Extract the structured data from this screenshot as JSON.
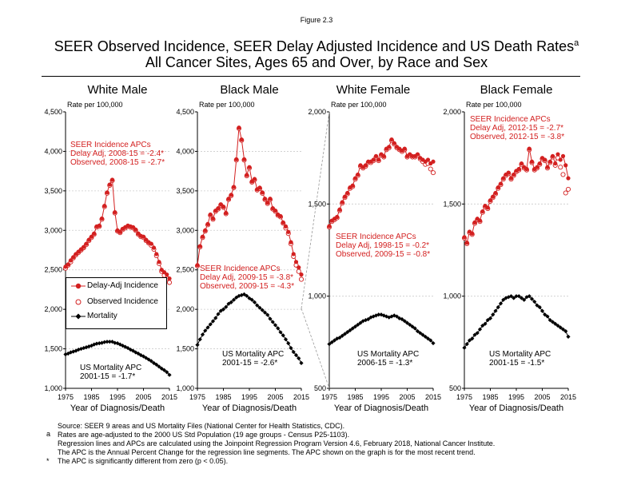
{
  "figure_label": "Figure 2.3",
  "title_line1": "SEER Observed Incidence, SEER Delay Adjusted Incidence and US Death Rates",
  "title_superscript": "a",
  "title_line2": "All Cancer Sites, Ages 65 and Over, by Race and Sex",
  "colors": {
    "incidence": "#d32020",
    "mortality": "#000000",
    "apc_text": "#d32020",
    "grid": "#cccccc"
  },
  "legend": {
    "delay_adj": "Delay-Adj Incidence",
    "observed": "Observed Incidence",
    "mortality": "Mortality"
  },
  "footnotes": {
    "source": "Source: SEER 9 areas and US Mortality Files (National Center for Health Statistics, CDC).",
    "a_marker": "a",
    "a_text": "Rates are age-adjusted to the 2000 US Std Population (19 age groups - Census P25-1103).",
    "line3": "Regression lines and APCs are calculated using the Joinpoint Regression Program Version 4.6, February 2018, National Cancer Institute.",
    "line4": "The APC is the Annual Percent Change for the regression line segments. The APC shown on the graph is for the most recent trend.",
    "star_marker": "*",
    "star_text": "The APC is significantly different from zero (p < 0.05)."
  },
  "chart_data": [
    {
      "type": "line",
      "title": "White Male",
      "ylabel": "Rate per 100,000",
      "xlabel": "Year of Diagnosis/Death",
      "x_ticks": [
        1975,
        1985,
        1995,
        2005,
        2015
      ],
      "y_ticks": [
        1000,
        1500,
        2000,
        2500,
        3000,
        3500,
        4000,
        4500
      ],
      "y_tick_labels": [
        "1,000",
        "1,500",
        "2,000",
        "2,500",
        "3,000",
        "3,500",
        "4,000",
        "4,500"
      ],
      "ylim": [
        1000,
        4500
      ],
      "log_scale": false,
      "x": [
        1975,
        1976,
        1977,
        1978,
        1979,
        1980,
        1981,
        1982,
        1983,
        1984,
        1985,
        1986,
        1987,
        1988,
        1989,
        1990,
        1991,
        1992,
        1993,
        1994,
        1995,
        1996,
        1997,
        1998,
        1999,
        2000,
        2001,
        2002,
        2003,
        2004,
        2005,
        2006,
        2007,
        2008,
        2009,
        2010,
        2011,
        2012,
        2013,
        2014,
        2015
      ],
      "series": [
        {
          "name": "Delay-Adj Incidence",
          "values": [
            2540,
            2570,
            2620,
            2660,
            2700,
            2730,
            2760,
            2790,
            2830,
            2880,
            2920,
            2960,
            3050,
            3060,
            3150,
            3310,
            3480,
            3580,
            3640,
            3230,
            3000,
            2980,
            3020,
            3040,
            3060,
            3050,
            3040,
            3010,
            2960,
            2930,
            2920,
            2880,
            2850,
            2830,
            2780,
            2700,
            2600,
            2500,
            2470,
            2440,
            2390
          ]
        },
        {
          "name": "Observed Incidence",
          "values": [
            2520,
            2560,
            2600,
            2650,
            2690,
            2720,
            2750,
            2780,
            2820,
            2870,
            2910,
            2950,
            3040,
            3050,
            3140,
            3300,
            3470,
            3570,
            3630,
            3220,
            2990,
            2970,
            3010,
            3030,
            3050,
            3040,
            3030,
            3000,
            2950,
            2920,
            2910,
            2870,
            2840,
            2810,
            2760,
            2680,
            2580,
            2480,
            2430,
            2390,
            2340
          ]
        },
        {
          "name": "Mortality",
          "values": [
            1430,
            1440,
            1455,
            1465,
            1475,
            1490,
            1500,
            1510,
            1520,
            1530,
            1540,
            1555,
            1565,
            1570,
            1575,
            1585,
            1590,
            1590,
            1590,
            1575,
            1570,
            1555,
            1540,
            1525,
            1510,
            1490,
            1475,
            1455,
            1440,
            1420,
            1405,
            1385,
            1365,
            1345,
            1320,
            1300,
            1275,
            1250,
            1230,
            1205,
            1170
          ]
        }
      ],
      "apc_incidence": [
        "SEER Incidence APCs",
        "Delay Adj, 2008-15 = -2.4*",
        "Observed, 2008-15 = -2.7*"
      ],
      "apc_mortality": [
        "US Mortality APC",
        "2001-15 = -1.7*"
      ]
    },
    {
      "type": "line",
      "title": "Black Male",
      "ylabel": "Rate per 100,000",
      "xlabel": "Year of Diagnosis/Death",
      "x_ticks": [
        1975,
        1985,
        1995,
        2005,
        2015
      ],
      "y_ticks": [
        1000,
        1500,
        2000,
        2500,
        3000,
        3500,
        4000,
        4500
      ],
      "y_tick_labels": [
        "1,000",
        "1,500",
        "2,000",
        "2,500",
        "3,000",
        "3,500",
        "4,000",
        "4,500"
      ],
      "ylim": [
        1000,
        4500
      ],
      "log_scale": false,
      "x": [
        1975,
        1976,
        1977,
        1978,
        1979,
        1980,
        1981,
        1982,
        1983,
        1984,
        1985,
        1986,
        1987,
        1988,
        1989,
        1990,
        1991,
        1992,
        1993,
        1994,
        1995,
        1996,
        1997,
        1998,
        1999,
        2000,
        2001,
        2002,
        2003,
        2004,
        2005,
        2006,
        2007,
        2008,
        2009,
        2010,
        2011,
        2012,
        2013,
        2014,
        2015
      ],
      "series": [
        {
          "name": "Delay-Adj Incidence",
          "values": [
            2560,
            2800,
            2920,
            3000,
            3080,
            3200,
            3150,
            3250,
            3280,
            3330,
            3300,
            3220,
            3400,
            3450,
            3550,
            3900,
            4300,
            4150,
            3900,
            3700,
            3800,
            3620,
            3650,
            3520,
            3540,
            3480,
            3400,
            3350,
            3400,
            3280,
            3250,
            3200,
            3180,
            3100,
            3050,
            2980,
            2850,
            2700,
            2600,
            2530,
            2440
          ]
        },
        {
          "name": "Observed Incidence",
          "values": [
            2550,
            2790,
            2910,
            2990,
            3070,
            3190,
            3140,
            3240,
            3270,
            3320,
            3290,
            3210,
            3390,
            3440,
            3540,
            3890,
            4290,
            4140,
            3890,
            3690,
            3790,
            3610,
            3640,
            3510,
            3530,
            3470,
            3390,
            3340,
            3390,
            3270,
            3240,
            3190,
            3170,
            3090,
            3030,
            2960,
            2830,
            2670,
            2560,
            2480,
            2380
          ]
        },
        {
          "name": "Mortality",
          "values": [
            1550,
            1620,
            1680,
            1730,
            1770,
            1810,
            1850,
            1890,
            1940,
            1980,
            2000,
            2030,
            2070,
            2090,
            2120,
            2150,
            2170,
            2180,
            2190,
            2170,
            2140,
            2120,
            2090,
            2050,
            2020,
            1990,
            1960,
            1930,
            1880,
            1840,
            1800,
            1760,
            1710,
            1670,
            1620,
            1570,
            1510,
            1460,
            1420,
            1380,
            1320
          ]
        }
      ],
      "apc_incidence": [
        "SEER Incidence APCs",
        "Delay Adj, 2009-15 = -3.8*",
        "Observed, 2009-15 = -4.3*"
      ],
      "apc_mortality": [
        "US Mortality APC",
        "2001-15 = -2.6*"
      ]
    },
    {
      "type": "line",
      "title": "White Female",
      "ylabel": "Rate per 100,000",
      "xlabel": "Year of Diagnosis/Death",
      "x_ticks": [
        1975,
        1985,
        1995,
        2005,
        2015
      ],
      "y_ticks": [
        500,
        1000,
        1500,
        2000
      ],
      "y_tick_labels": [
        "500",
        "1,000",
        "1,500",
        "2,000"
      ],
      "ylim": [
        500,
        2000
      ],
      "log_scale": false,
      "x": [
        1975,
        1976,
        1977,
        1978,
        1979,
        1980,
        1981,
        1982,
        1983,
        1984,
        1985,
        1986,
        1987,
        1988,
        1989,
        1990,
        1991,
        1992,
        1993,
        1994,
        1995,
        1996,
        1997,
        1998,
        1999,
        2000,
        2001,
        2002,
        2003,
        2004,
        2005,
        2006,
        2007,
        2008,
        2009,
        2010,
        2011,
        2012,
        2013,
        2014,
        2015
      ],
      "series": [
        {
          "name": "Delay-Adj Incidence",
          "values": [
            1380,
            1410,
            1420,
            1430,
            1470,
            1510,
            1540,
            1560,
            1590,
            1600,
            1640,
            1660,
            1710,
            1700,
            1710,
            1730,
            1730,
            1740,
            1760,
            1740,
            1770,
            1760,
            1800,
            1810,
            1850,
            1830,
            1810,
            1800,
            1790,
            1800,
            1760,
            1770,
            1760,
            1760,
            1770,
            1750,
            1740,
            1730,
            1740,
            1720,
            1730
          ]
        },
        {
          "name": "Observed Incidence",
          "values": [
            1375,
            1405,
            1415,
            1425,
            1465,
            1505,
            1535,
            1555,
            1585,
            1595,
            1635,
            1655,
            1705,
            1695,
            1705,
            1725,
            1725,
            1735,
            1755,
            1735,
            1765,
            1755,
            1795,
            1805,
            1845,
            1825,
            1805,
            1795,
            1785,
            1795,
            1755,
            1765,
            1755,
            1755,
            1765,
            1745,
            1730,
            1715,
            1720,
            1690,
            1670
          ]
        },
        {
          "name": "Mortality",
          "values": [
            740,
            750,
            760,
            770,
            775,
            785,
            795,
            805,
            815,
            825,
            835,
            845,
            855,
            865,
            870,
            875,
            885,
            890,
            895,
            900,
            900,
            895,
            890,
            885,
            890,
            895,
            890,
            880,
            875,
            865,
            855,
            845,
            835,
            825,
            810,
            800,
            790,
            780,
            770,
            760,
            745
          ]
        }
      ],
      "apc_incidence": [
        "SEER Incidence APCs",
        "Delay Adj, 1998-15 = -0.2*",
        "Observed, 2009-15 = -0.8*"
      ],
      "apc_mortality": [
        "US Mortality APC",
        "2006-15 = -1.3*"
      ]
    },
    {
      "type": "line",
      "title": "Black Female",
      "ylabel": "Rate per 100,000",
      "xlabel": "Year of Diagnosis/Death",
      "x_ticks": [
        1975,
        1985,
        1995,
        2005,
        2015
      ],
      "y_ticks": [
        500,
        1000,
        1500,
        2000
      ],
      "y_tick_labels": [
        "500",
        "1,000",
        "1,500",
        "2,000"
      ],
      "ylim": [
        500,
        2000
      ],
      "log_scale": false,
      "x": [
        1975,
        1976,
        1977,
        1978,
        1979,
        1980,
        1981,
        1982,
        1983,
        1984,
        1985,
        1986,
        1987,
        1988,
        1989,
        1990,
        1991,
        1992,
        1993,
        1994,
        1995,
        1996,
        1997,
        1998,
        1999,
        2000,
        2001,
        2002,
        2003,
        2004,
        2005,
        2006,
        2007,
        2008,
        2009,
        2010,
        2011,
        2012,
        2013,
        2014,
        2015
      ],
      "series": [
        {
          "name": "Delay-Adj Incidence",
          "values": [
            1320,
            1290,
            1350,
            1340,
            1400,
            1420,
            1410,
            1460,
            1490,
            1480,
            1520,
            1540,
            1560,
            1590,
            1610,
            1640,
            1660,
            1670,
            1640,
            1660,
            1680,
            1690,
            1720,
            1700,
            1690,
            1800,
            1730,
            1690,
            1700,
            1720,
            1750,
            1740,
            1700,
            1730,
            1760,
            1720,
            1770,
            1740,
            1760,
            1710,
            1640
          ]
        },
        {
          "name": "Observed Incidence",
          "values": [
            1315,
            1285,
            1345,
            1335,
            1395,
            1415,
            1405,
            1455,
            1485,
            1475,
            1515,
            1535,
            1555,
            1585,
            1605,
            1635,
            1655,
            1665,
            1635,
            1655,
            1675,
            1685,
            1715,
            1695,
            1685,
            1795,
            1725,
            1685,
            1695,
            1715,
            1745,
            1735,
            1695,
            1725,
            1755,
            1710,
            1750,
            1700,
            1660,
            1560,
            1580
          ]
        },
        {
          "name": "Mortality",
          "values": [
            720,
            740,
            760,
            770,
            790,
            800,
            820,
            840,
            850,
            870,
            880,
            900,
            920,
            940,
            960,
            980,
            990,
            995,
            1000,
            990,
            1000,
            1000,
            990,
            980,
            995,
            1000,
            985,
            970,
            950,
            940,
            920,
            900,
            890,
            870,
            860,
            850,
            840,
            830,
            820,
            810,
            780
          ]
        }
      ],
      "apc_incidence": [
        "SEER Incidence APCs",
        "Delay Adj, 2012-15 = -2.7*",
        "Observed, 2012-15 = -3.8*"
      ],
      "apc_mortality": [
        "US Mortality APC",
        "2001-15 = -1.5*"
      ]
    }
  ]
}
